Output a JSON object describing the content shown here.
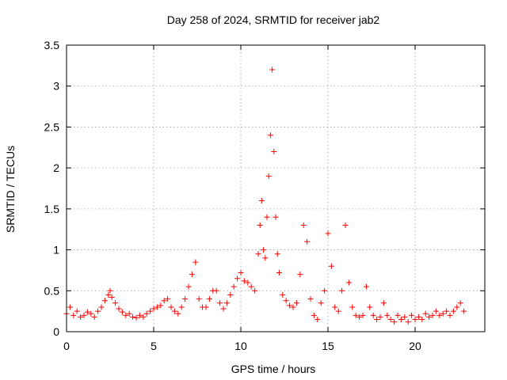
{
  "chart_data": {
    "type": "scatter",
    "title": "Day 258 of 2024, SRMTID for receiver jab2",
    "xlabel": "GPS time / hours",
    "ylabel": "SRMTID / TECUs",
    "xlim": [
      0,
      24
    ],
    "ylim": [
      0,
      3.5
    ],
    "xticks": [
      0,
      5,
      10,
      15,
      20
    ],
    "xtick_labels": [
      "0",
      "5",
      "10",
      "15",
      "20"
    ],
    "yticks": [
      0,
      0.5,
      1,
      1.5,
      2,
      2.5,
      3,
      3.5
    ],
    "ytick_labels": [
      "0",
      "0.5",
      "1",
      "1.5",
      "2",
      "2.5",
      "3",
      "3.5"
    ],
    "grid": true,
    "marker": "+",
    "series": [
      {
        "name": "SRMTID",
        "color": "#ff0000",
        "x": [
          0.0,
          0.2,
          0.4,
          0.6,
          0.8,
          1.0,
          1.2,
          1.4,
          1.6,
          1.8,
          2.0,
          2.2,
          2.4,
          2.5,
          2.6,
          2.8,
          3.0,
          3.2,
          3.4,
          3.6,
          3.8,
          4.0,
          4.2,
          4.4,
          4.6,
          4.8,
          5.0,
          5.2,
          5.4,
          5.6,
          5.8,
          6.0,
          6.2,
          6.4,
          6.6,
          6.8,
          7.0,
          7.2,
          7.4,
          7.6,
          7.8,
          8.0,
          8.2,
          8.4,
          8.6,
          8.8,
          9.0,
          9.2,
          9.4,
          9.6,
          9.8,
          10.0,
          10.2,
          10.4,
          10.6,
          10.8,
          11.0,
          11.1,
          11.2,
          11.3,
          11.4,
          11.5,
          11.6,
          11.7,
          11.8,
          11.9,
          12.0,
          12.1,
          12.2,
          12.4,
          12.6,
          12.8,
          13.0,
          13.2,
          13.4,
          13.6,
          13.8,
          14.0,
          14.2,
          14.4,
          14.6,
          14.8,
          15.0,
          15.2,
          15.4,
          15.6,
          15.8,
          16.0,
          16.2,
          16.4,
          16.6,
          16.8,
          17.0,
          17.2,
          17.4,
          17.6,
          17.8,
          18.0,
          18.2,
          18.4,
          18.6,
          18.8,
          19.0,
          19.2,
          19.4,
          19.6,
          19.8,
          20.0,
          20.2,
          20.4,
          20.6,
          20.8,
          21.0,
          21.2,
          21.4,
          21.6,
          21.8,
          22.0,
          22.2,
          22.4,
          22.6,
          22.8
        ],
        "y": [
          0.22,
          0.3,
          0.2,
          0.25,
          0.18,
          0.2,
          0.24,
          0.22,
          0.18,
          0.25,
          0.3,
          0.38,
          0.45,
          0.5,
          0.42,
          0.35,
          0.28,
          0.24,
          0.2,
          0.22,
          0.18,
          0.17,
          0.2,
          0.18,
          0.22,
          0.25,
          0.28,
          0.3,
          0.32,
          0.38,
          0.4,
          0.3,
          0.25,
          0.22,
          0.3,
          0.4,
          0.55,
          0.7,
          0.85,
          0.4,
          0.3,
          0.3,
          0.4,
          0.5,
          0.5,
          0.35,
          0.28,
          0.35,
          0.45,
          0.55,
          0.65,
          0.72,
          0.62,
          0.6,
          0.55,
          0.5,
          0.95,
          1.3,
          1.6,
          1.0,
          0.9,
          1.4,
          1.9,
          2.4,
          3.2,
          2.2,
          1.4,
          0.95,
          0.72,
          0.45,
          0.38,
          0.32,
          0.3,
          0.35,
          0.7,
          1.3,
          1.1,
          0.4,
          0.2,
          0.15,
          0.35,
          0.5,
          1.2,
          0.8,
          0.3,
          0.25,
          0.5,
          1.3,
          0.6,
          0.3,
          0.2,
          0.18,
          0.2,
          0.55,
          0.3,
          0.2,
          0.15,
          0.18,
          0.35,
          0.2,
          0.15,
          0.12,
          0.2,
          0.15,
          0.18,
          0.12,
          0.2,
          0.15,
          0.18,
          0.15,
          0.22,
          0.18,
          0.2,
          0.25,
          0.2,
          0.22,
          0.25,
          0.2,
          0.25,
          0.3,
          0.35,
          0.25
        ]
      }
    ]
  }
}
